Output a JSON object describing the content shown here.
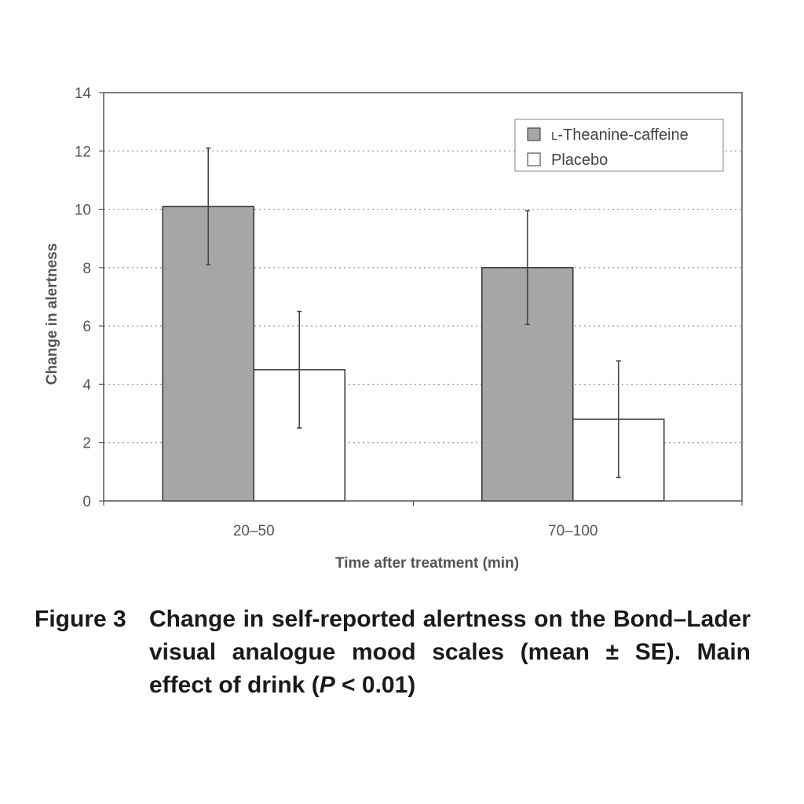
{
  "chart_data": {
    "type": "bar",
    "categories": [
      "20–50",
      "70–100"
    ],
    "series": [
      {
        "name": "L-Theanine-caffeine",
        "legend_prefix": "L",
        "legend_rest": "-Theanine-caffeine",
        "color": "#a6a6a6",
        "values": [
          10.1,
          8.0
        ],
        "errors": [
          2.0,
          1.95
        ]
      },
      {
        "name": "Placebo",
        "legend_prefix": "",
        "legend_rest": "Placebo",
        "color": "#ffffff",
        "values": [
          4.5,
          2.8
        ],
        "errors": [
          2.0,
          2.0
        ]
      }
    ],
    "ylim": [
      0,
      14
    ],
    "yticks": [
      "0",
      "2",
      "4",
      "6",
      "8",
      "10",
      "12",
      "14"
    ],
    "xlabel": "Time after treatment (min)",
    "ylabel": "Change in alertness",
    "grid": "dotted horizontal",
    "legend": "top-right"
  },
  "caption": {
    "label": "Figure 3",
    "text_part1": "Change in self-reported alertness on the Bond–Lader visual analogue mood scales (mean ± SE). Main effect of drink (",
    "text_italic": "P",
    "text_part2": " < 0.01)"
  },
  "colors": {
    "axis": "#555555",
    "grid": "#9a9a9a",
    "bar_stroke": "#333333"
  }
}
